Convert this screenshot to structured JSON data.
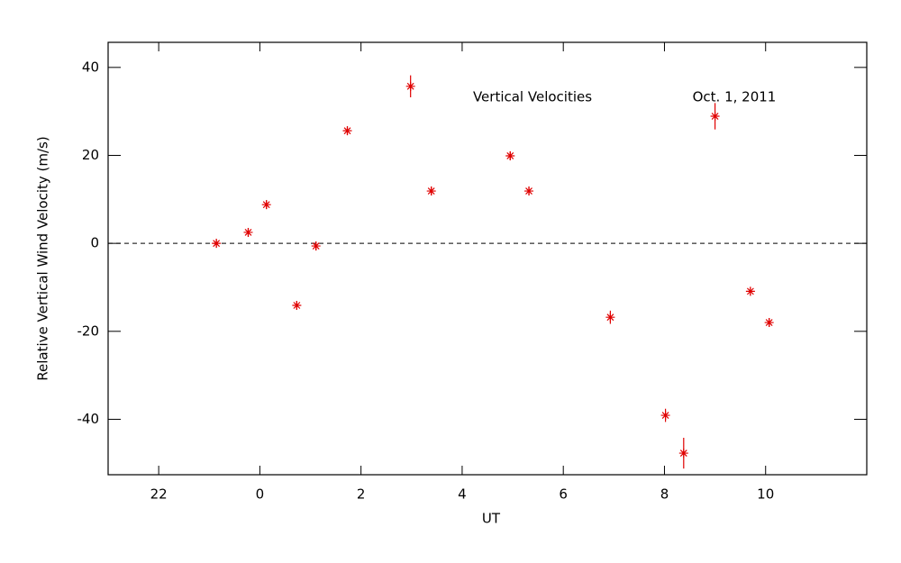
{
  "chart_data": {
    "type": "scatter",
    "xlabel": "UT",
    "ylabel": "Relative Vertical Wind Velocity (m/s)",
    "annotations": [
      "Vertical Velocities",
      "Oct. 1, 2011"
    ],
    "color": "#e00000",
    "x": [
      23.14,
      23.77,
      24.13,
      24.73,
      25.11,
      25.73,
      26.98,
      27.39,
      28.95,
      29.32,
      30.93,
      32.02,
      32.38,
      33.0,
      33.7,
      34.07
    ],
    "values": [
      0,
      2.5,
      8.8,
      -14.1,
      -0.6,
      25.6,
      35.7,
      11.9,
      19.9,
      11.9,
      -16.8,
      -39.1,
      -47.7,
      28.9,
      -10.9,
      -18.0
    ],
    "errors": [
      1,
      1,
      1,
      1,
      1,
      1,
      2.5,
      1,
      1,
      1,
      1.5,
      1.5,
      3.5,
      3,
      1,
      1
    ],
    "xlim": [
      21,
      36
    ],
    "ylim": [
      -52.6,
      45.7
    ],
    "xticks": [
      22,
      {
        "value": 24,
        "label": "0"
      },
      {
        "value": 26,
        "label": "2"
      },
      {
        "value": 28,
        "label": "4"
      },
      {
        "value": 30,
        "label": "6"
      },
      {
        "value": 32,
        "label": "8"
      },
      {
        "value": 34,
        "label": "10"
      }
    ],
    "yticks": [
      -40,
      -20,
      0,
      20,
      40
    ],
    "reference_line": 0
  }
}
